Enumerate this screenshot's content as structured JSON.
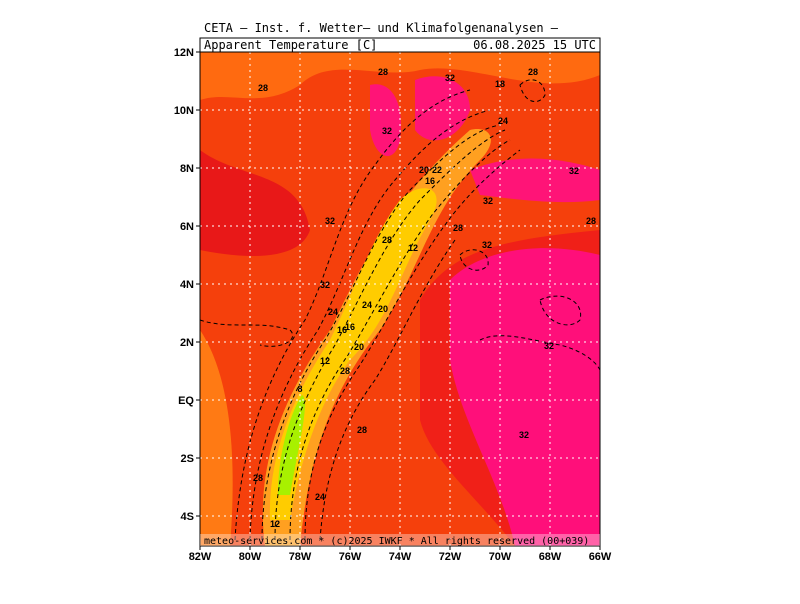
{
  "header": {
    "title": "CETA — Inst. f. Wetter— und Klimafolgenanalysen —",
    "variable": "Apparent_Temperature [C]",
    "datetime": "06.08.2025 15 UTC"
  },
  "axes": {
    "lon_labels": [
      "82W",
      "80W",
      "78W",
      "76W",
      "74W",
      "72W",
      "70W",
      "68W",
      "66W"
    ],
    "lat_labels": [
      "12N",
      "10N",
      "8N",
      "6N",
      "4N",
      "2N",
      "EQ",
      "2S",
      "4S"
    ]
  },
  "contour_labels": [
    "28",
    "28",
    "32",
    "28",
    "18",
    "32",
    "24",
    "20",
    "22",
    "16",
    "32",
    "32",
    "28",
    "32",
    "28",
    "28",
    "12",
    "32",
    "32",
    "24",
    "24",
    "20",
    "16",
    "16",
    "20",
    "32",
    "12",
    "28",
    "8",
    "28",
    "32",
    "28",
    "24",
    "12"
  ],
  "footer": "meteo-services.com * (c)2025 IWKF * All rights reserved (00+039)"
}
